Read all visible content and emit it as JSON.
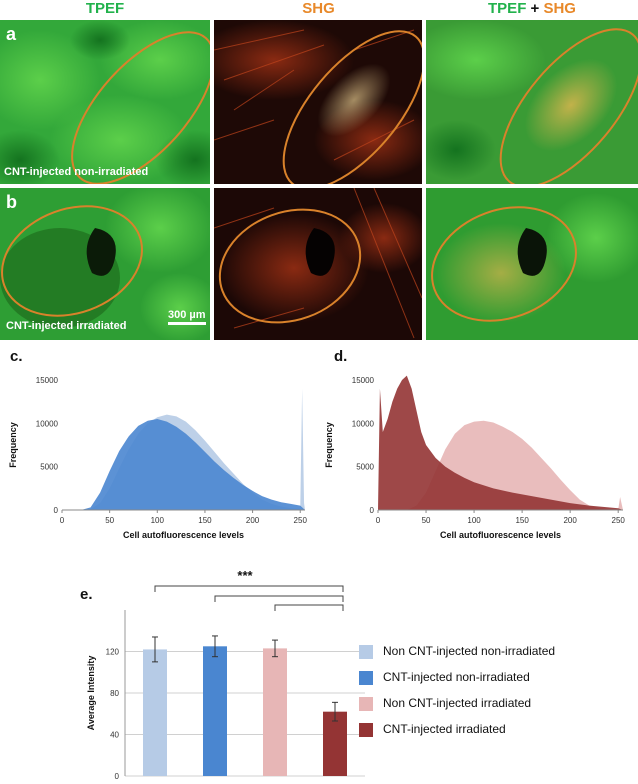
{
  "figure": {
    "headers": {
      "tpef": "TPEF",
      "shg": "SHG",
      "plus": "+"
    },
    "rows": [
      {
        "label": "a",
        "caption": "CNT-injected non-irradiated"
      },
      {
        "label": "b",
        "caption": "CNT-injected irradiated"
      }
    ],
    "scale_bar": "300 µm",
    "panel_labels": {
      "c": "c.",
      "d": "d.",
      "e": "e."
    },
    "colors": {
      "tpef_green": "#22b24c",
      "shg_orange": "#e8892a",
      "ellipse": "#d9822b",
      "light_blue": "#b6cbe6",
      "blue": "#4a86d0",
      "light_pink": "#e7b6b6",
      "dark_red": "#943434"
    },
    "significance": "***",
    "legend": [
      "Non CNT-injected non-irradiated",
      "CNT-injected non-irradiated",
      "Non CNT-injected irradiated",
      "CNT-injected irradiated"
    ]
  },
  "chart_data": [
    {
      "type": "area",
      "title": "c.",
      "xlabel": "Cell autofluorescence levels",
      "ylabel": "Frequency",
      "xlim": [
        0,
        255
      ],
      "ylim": [
        0,
        15000
      ],
      "xticks": [
        0,
        50,
        100,
        150,
        200,
        250
      ],
      "yticks": [
        0,
        5000,
        10000,
        15000
      ],
      "series": [
        {
          "name": "Non CNT-injected non-irradiated",
          "color": "#b6cbe6",
          "x": [
            0,
            20,
            30,
            40,
            50,
            60,
            70,
            80,
            90,
            100,
            110,
            120,
            130,
            140,
            150,
            160,
            170,
            180,
            190,
            200,
            210,
            220,
            230,
            240,
            250,
            252,
            254,
            255
          ],
          "y": [
            0,
            0,
            100,
            800,
            2500,
            4800,
            7000,
            8800,
            10000,
            10700,
            11000,
            10800,
            10200,
            9200,
            8000,
            6700,
            5400,
            4200,
            3000,
            2000,
            1200,
            700,
            400,
            200,
            150,
            14000,
            800,
            0
          ]
        },
        {
          "name": "CNT-injected non-irradiated",
          "color": "#4a86d0",
          "x": [
            0,
            20,
            30,
            40,
            50,
            60,
            70,
            80,
            90,
            100,
            110,
            120,
            130,
            140,
            150,
            160,
            170,
            180,
            190,
            200,
            210,
            220,
            230,
            240,
            250,
            255
          ],
          "y": [
            0,
            0,
            300,
            2000,
            4500,
            6800,
            8500,
            9700,
            10300,
            10500,
            10200,
            9600,
            8800,
            7800,
            6700,
            5600,
            4600,
            3700,
            2900,
            2200,
            1600,
            1200,
            900,
            700,
            500,
            0
          ]
        }
      ]
    },
    {
      "type": "area",
      "title": "d.",
      "xlabel": "Cell autofluorescence levels",
      "ylabel": "Frequency",
      "xlim": [
        0,
        255
      ],
      "ylim": [
        0,
        15000
      ],
      "xticks": [
        0,
        50,
        100,
        150,
        200,
        250
      ],
      "yticks": [
        0,
        5000,
        10000,
        15000
      ],
      "series": [
        {
          "name": "Non CNT-injected irradiated",
          "color": "#e7b6b6",
          "x": [
            0,
            30,
            40,
            50,
            60,
            70,
            80,
            90,
            100,
            110,
            120,
            130,
            140,
            150,
            160,
            170,
            180,
            190,
            200,
            210,
            220,
            230,
            240,
            250,
            252,
            255
          ],
          "y": [
            0,
            0,
            500,
            2000,
            4500,
            7000,
            8800,
            9800,
            10200,
            10300,
            10100,
            9600,
            9000,
            8200,
            7200,
            6000,
            4800,
            3500,
            2300,
            1200,
            500,
            200,
            100,
            50,
            1500,
            0
          ]
        },
        {
          "name": "CNT-injected irradiated",
          "color": "#943434",
          "x": [
            0,
            2,
            5,
            10,
            15,
            20,
            25,
            30,
            35,
            40,
            45,
            50,
            60,
            70,
            80,
            90,
            100,
            120,
            140,
            160,
            180,
            200,
            220,
            240,
            250,
            255
          ],
          "y": [
            0,
            14000,
            9000,
            10500,
            12500,
            14000,
            15000,
            15500,
            14000,
            11500,
            9000,
            7500,
            6000,
            5000,
            4300,
            3700,
            3200,
            2500,
            2000,
            1600,
            1200,
            800,
            500,
            300,
            200,
            0
          ]
        }
      ]
    },
    {
      "type": "bar",
      "title": "e.",
      "ylabel": "Average Intensity",
      "ylim": [
        0,
        160
      ],
      "yticks": [
        0,
        40,
        80,
        120
      ],
      "categories": [
        "Non CNT-injected non-irradiated",
        "CNT-injected non-irradiated",
        "Non CNT-injected irradiated",
        "CNT-injected irradiated"
      ],
      "values": [
        122,
        125,
        123,
        62
      ],
      "errors": [
        12,
        10,
        8,
        9
      ],
      "colors": [
        "#b6cbe6",
        "#4a86d0",
        "#e7b6b6",
        "#943434"
      ],
      "significance": "***"
    }
  ]
}
